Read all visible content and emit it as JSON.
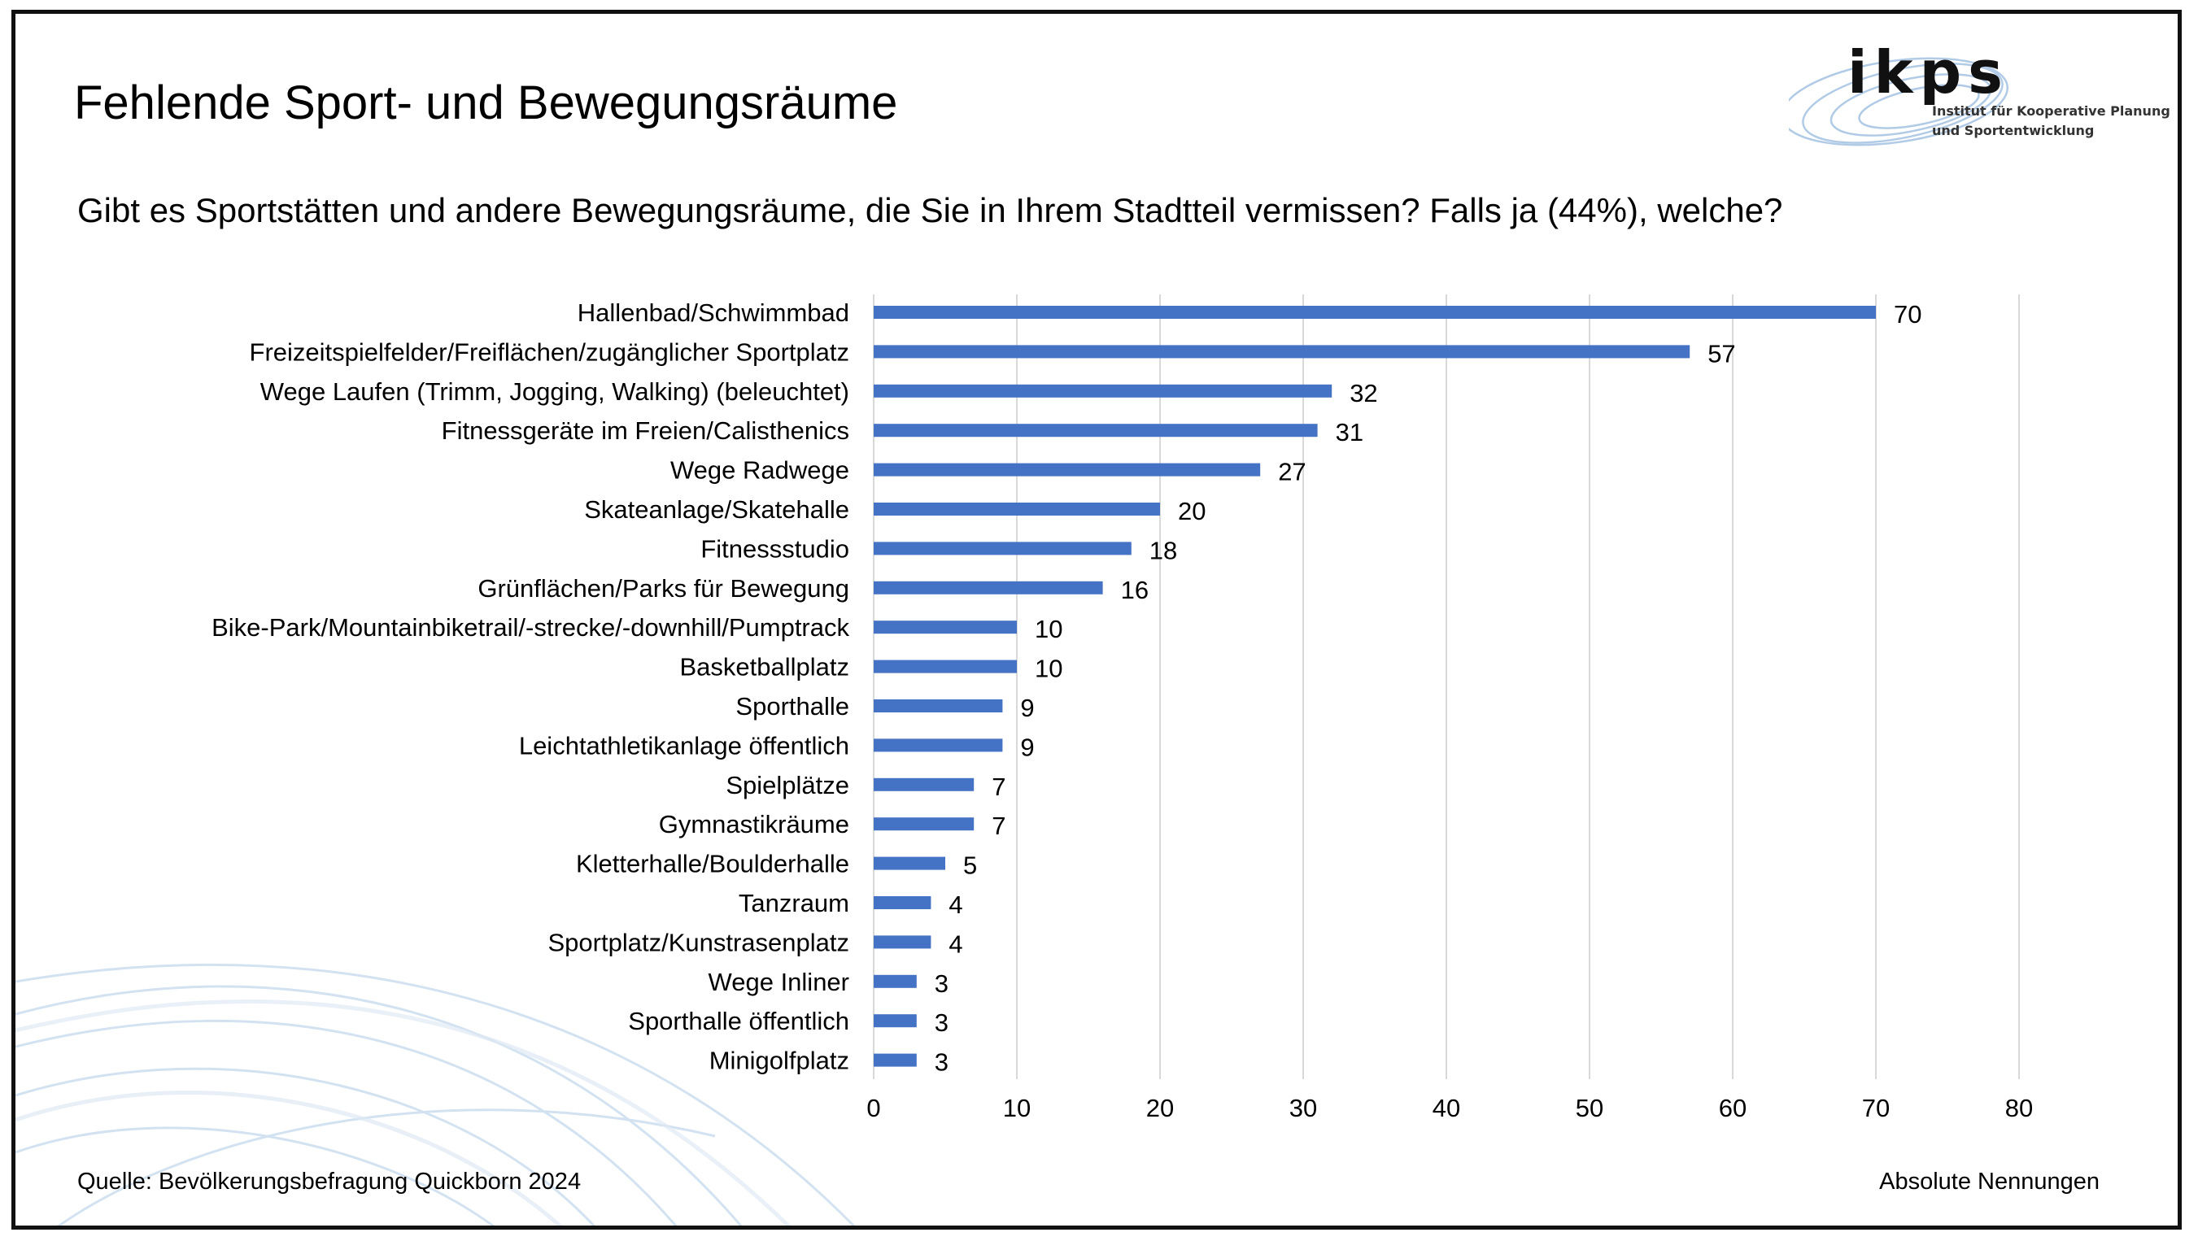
{
  "slide": {
    "title": "Fehlende Sport- und Bewegungsräume",
    "question": "Gibt es Sportstätten und andere Bewegungsräume, die Sie in Ihrem Stadtteil vermissen? Falls ja (44%), welche?",
    "source": "Quelle: Bevölkerungsbefragung Quickborn 2024",
    "unit_note": "Absolute Nennungen"
  },
  "logo": {
    "name": "ikps",
    "subtitle_line1": "Institut für Kooperative Planung",
    "subtitle_line2": "und Sportentwicklung"
  },
  "chart_data": {
    "type": "bar",
    "orientation": "horizontal",
    "title": "",
    "xlabel": "",
    "ylabel": "",
    "categories": [
      "Hallenbad/Schwimmbad",
      "Freizeitspielfelder/Freiflächen/zugänglicher Sportplatz",
      "Wege Laufen (Trimm, Jogging, Walking) (beleuchtet)",
      "Fitnessgeräte im Freien/Calisthenics",
      "Wege Radwege",
      "Skateanlage/Skatehalle",
      "Fitnessstudio",
      "Grünflächen/Parks für Bewegung",
      "Bike-Park/Mountainbiketrail/-strecke/-downhill/Pumptrack",
      "Basketballplatz",
      "Sporthalle",
      "Leichtathletikanlage öffentlich",
      "Spielplätze",
      "Gymnastikräume",
      "Kletterhalle/Boulderhalle",
      "Tanzraum",
      "Sportplatz/Kunstrasenplatz",
      "Wege Inliner",
      "Sporthalle öffentlich",
      "Minigolfplatz"
    ],
    "values": [
      70,
      57,
      32,
      31,
      27,
      20,
      18,
      16,
      10,
      10,
      9,
      9,
      7,
      7,
      5,
      4,
      4,
      3,
      3,
      3
    ],
    "xlim": [
      0,
      80
    ],
    "xticks": [
      0,
      10,
      20,
      30,
      40,
      50,
      60,
      70,
      80
    ],
    "grid": "vertical",
    "bar_color": "#4472C4",
    "grid_color": "#d9d9d9"
  }
}
